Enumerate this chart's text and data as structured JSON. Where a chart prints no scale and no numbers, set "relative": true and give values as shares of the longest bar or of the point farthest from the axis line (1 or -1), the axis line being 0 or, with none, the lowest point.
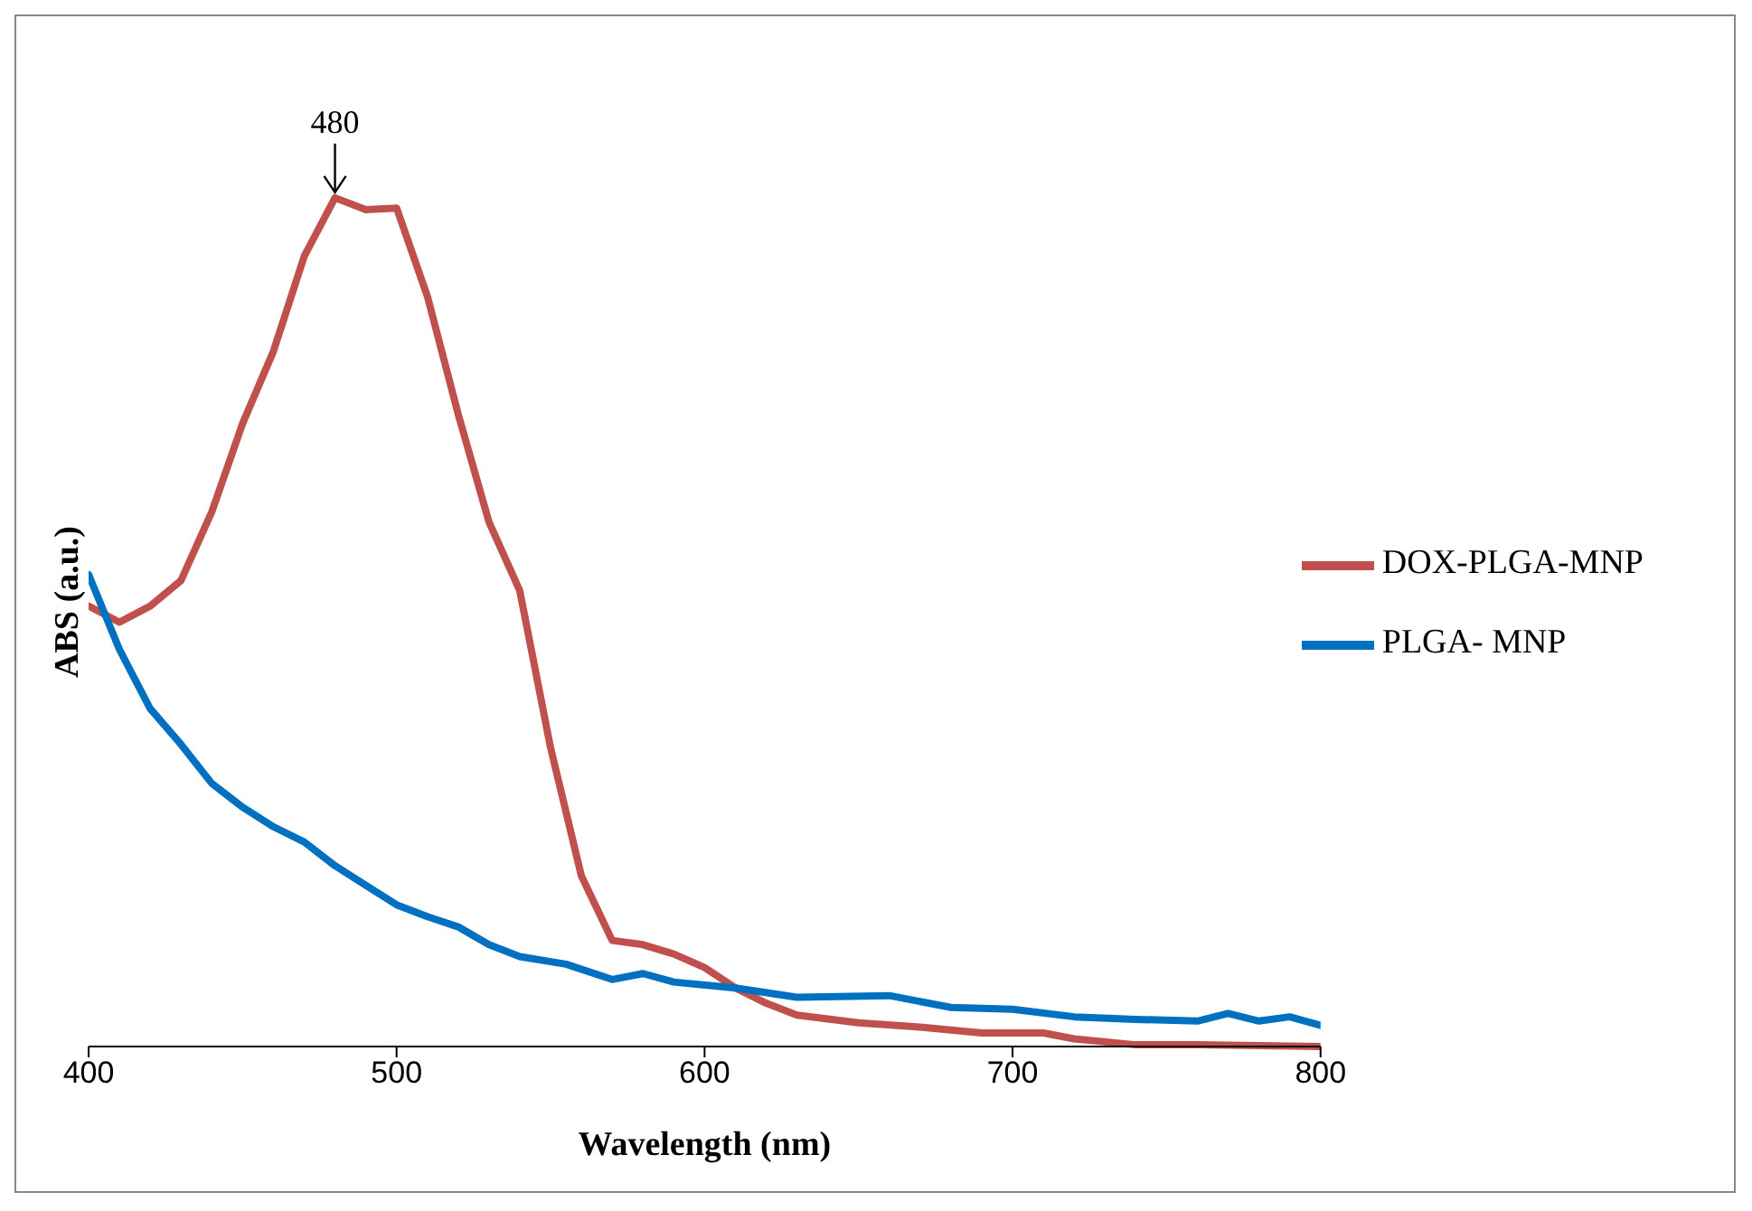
{
  "chart_data": {
    "type": "line",
    "xlabel": "Wavelength (nm)",
    "ylabel": "ABS (a.u.)",
    "relative": true,
    "xlim": [
      400,
      800
    ],
    "xticks": [
      400,
      500,
      600,
      700,
      800
    ],
    "legend": "right",
    "grid": false,
    "marker": "none",
    "line_style": "solid",
    "annotations": [
      {
        "text": "480",
        "x": 480,
        "y": 1
      }
    ],
    "series": [
      {
        "name": "DOX-PLGA-MNP",
        "color": "#c0504d",
        "x": [
          400,
          410,
          420,
          430,
          440,
          450,
          460,
          470,
          480,
          490,
          500,
          510,
          520,
          530,
          540,
          550,
          560,
          570,
          580,
          590,
          600,
          610,
          620,
          630,
          650,
          670,
          690,
          710,
          720,
          740,
          760,
          800
        ],
        "values": [
          0.519,
          0.5,
          0.519,
          0.549,
          0.63,
          0.734,
          0.819,
          0.931,
          1,
          0.986,
          0.988,
          0.884,
          0.745,
          0.618,
          0.537,
          0.352,
          0.201,
          0.125,
          0.12,
          0.109,
          0.093,
          0.069,
          0.051,
          0.037,
          0.028,
          0.023,
          0.016,
          0.016,
          0.009,
          0.002,
          0.002,
          0
        ]
      },
      {
        "name": "PLGA- MNP",
        "color": "#0070c0",
        "x": [
          400,
          410,
          420,
          430,
          440,
          450,
          460,
          470,
          480,
          490,
          500,
          510,
          520,
          530,
          540,
          555,
          570,
          580,
          590,
          610,
          630,
          660,
          680,
          700,
          720,
          740,
          760,
          770,
          780,
          790,
          800
        ],
        "values": [
          0.556,
          0.468,
          0.398,
          0.356,
          0.31,
          0.282,
          0.259,
          0.241,
          0.213,
          0.19,
          0.167,
          0.153,
          0.141,
          0.12,
          0.106,
          0.097,
          0.079,
          0.086,
          0.076,
          0.069,
          0.058,
          0.06,
          0.046,
          0.044,
          0.035,
          0.032,
          0.03,
          0.039,
          0.03,
          0.035,
          0.025
        ]
      }
    ]
  }
}
